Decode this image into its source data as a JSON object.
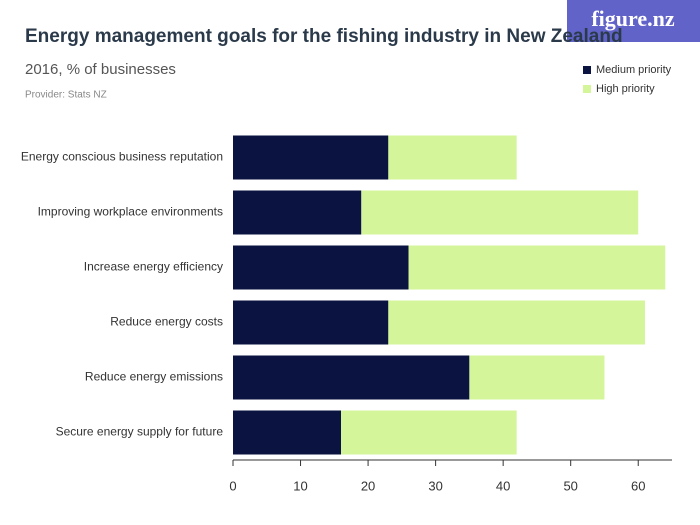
{
  "logo": "figure.nz",
  "chart_data": {
    "type": "stacked-barh",
    "title": "Energy management goals for the fishing industry in New Zealand",
    "subtitle": "2016, % of businesses",
    "provider": "Provider: Stats NZ",
    "categories": [
      "Energy conscious business reputation",
      "Improving workplace environments",
      "Increase energy efficiency",
      "Reduce energy costs",
      "Reduce energy emissions",
      "Secure energy supply for future"
    ],
    "series": [
      {
        "name": "Medium priority",
        "color": "#0b1340",
        "values": [
          23,
          19,
          26,
          23,
          35,
          16
        ]
      },
      {
        "name": "High priority",
        "color": "#d4f59a",
        "values": [
          19,
          41,
          38,
          38,
          20,
          26
        ]
      }
    ],
    "xlim": [
      0,
      65
    ],
    "xticks": [
      0,
      10,
      20,
      30,
      40,
      50,
      60
    ],
    "legend": "top-right"
  }
}
